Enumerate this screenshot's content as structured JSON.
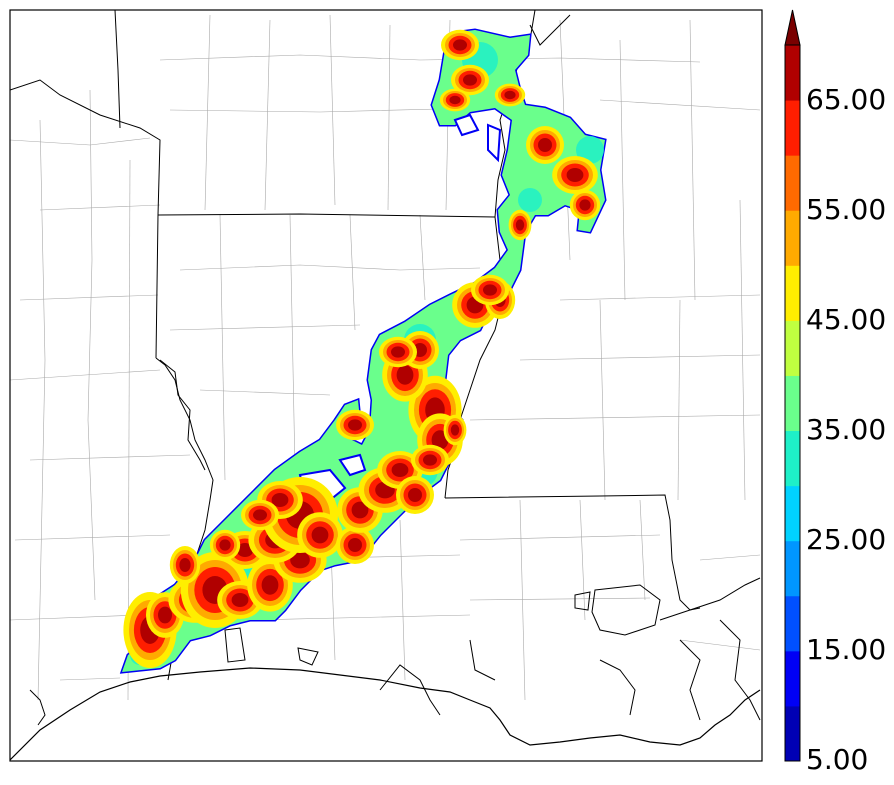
{
  "colorbar": {
    "labels": [
      "65.00",
      "55.00",
      "45.00",
      "35.00",
      "25.00",
      "15.00",
      "5.00"
    ],
    "levels": [
      5,
      10,
      15,
      20,
      25,
      30,
      35,
      40,
      45,
      50,
      55,
      60,
      65,
      70
    ],
    "colors": [
      "#0000b4",
      "#0000f5",
      "#0050ff",
      "#0096ff",
      "#00d2ff",
      "#1ef0c8",
      "#6aff8c",
      "#c0ff40",
      "#ffee00",
      "#ffaa00",
      "#ff6a00",
      "#ff1e00",
      "#b00000"
    ],
    "extend": "max",
    "extend_color": "#7a0000"
  },
  "palette": {
    "land_boundary": "#000000",
    "county_lines": "#9a9a9a",
    "background": "#ffffff"
  }
}
